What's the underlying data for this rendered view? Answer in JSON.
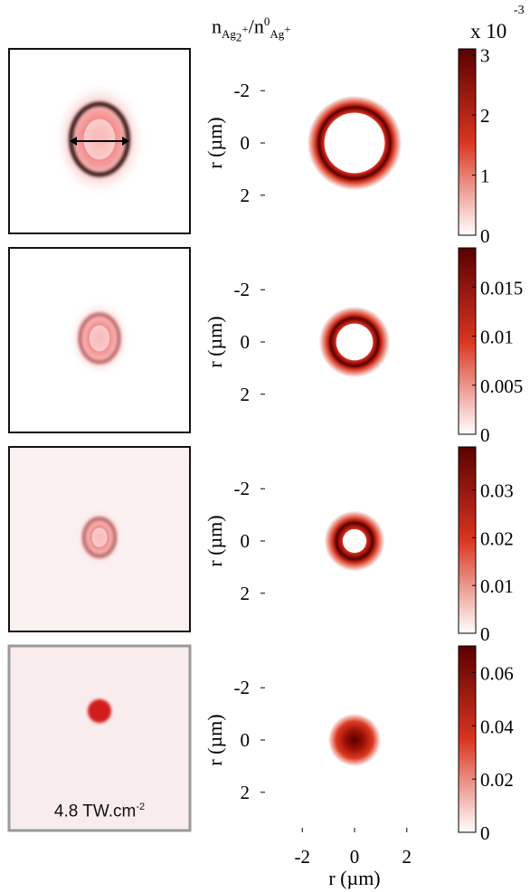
{
  "header": {
    "ratio_num": "n",
    "ratio_num_sub": "Ag",
    "ratio_num_sub2": "2",
    "ratio_num_sup": "+",
    "ratio_sep": "/n",
    "ratio_den_sup": "0",
    "ratio_den_sub": "Ag",
    "ratio_den_sub_sup": "+",
    "colorbar_multiplier": "x 10",
    "colorbar_exponent": "-3"
  },
  "experiment": {
    "caption_text": "4.8 TW.cm",
    "caption_exponent": "-2"
  },
  "chart_data": {
    "type": "heatmap",
    "colormap": [
      "#ffffff",
      "#d93520",
      "#5a0000"
    ],
    "xlabel": "r (µm)",
    "ylabel": "r (µm)",
    "xlim": [
      -3.6,
      3.6
    ],
    "ylim": [
      3.6,
      -3.6
    ],
    "x_ticks": [
      -2,
      0,
      2
    ],
    "y_ticks": [
      -2,
      0,
      2
    ],
    "panels": [
      {
        "ring_inner_radius_um": 1.15,
        "ring_outer_radius_um": 1.5,
        "fill": "ring",
        "colorbar": {
          "min": 0,
          "max": 3.1,
          "ticks": [
            0,
            1,
            2,
            3
          ],
          "tick_labels": [
            "0",
            "1",
            "2",
            "3"
          ]
        }
      },
      {
        "ring_inner_radius_um": 0.7,
        "ring_outer_radius_um": 1.05,
        "fill": "ring",
        "colorbar": {
          "min": 0,
          "max": 0.019,
          "ticks": [
            0,
            0.005,
            0.01,
            0.015
          ],
          "tick_labels": [
            "0",
            "0.005",
            "0.01",
            "0.015"
          ]
        }
      },
      {
        "ring_inner_radius_um": 0.45,
        "ring_outer_radius_um": 0.85,
        "fill": "ring",
        "colorbar": {
          "min": 0,
          "max": 0.039,
          "ticks": [
            0,
            0.01,
            0.02,
            0.03
          ],
          "tick_labels": [
            "0",
            "0.01",
            "0.02",
            "0.03"
          ]
        }
      },
      {
        "ring_inner_radius_um": 0,
        "ring_outer_radius_um": 0.7,
        "fill": "disk",
        "colorbar": {
          "min": 0,
          "max": 0.07,
          "ticks": [
            0,
            0.02,
            0.04,
            0.06
          ],
          "tick_labels": [
            "0",
            "0.02",
            "0.04",
            "0.06"
          ]
        }
      }
    ]
  }
}
